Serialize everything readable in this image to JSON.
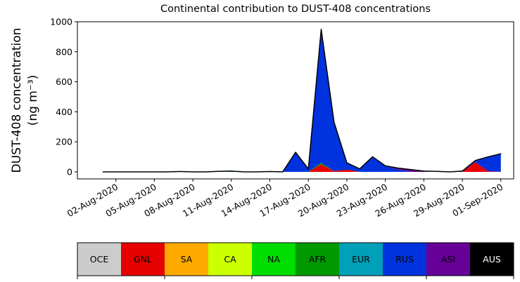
{
  "chart_data": {
    "type": "stacked_area",
    "title": "Continental contribution to DUST-408 concentrations",
    "ylabel": [
      "DUST-408 concentration",
      "(ng m⁻³)"
    ],
    "x": [
      "2020-08-01",
      "2020-08-02",
      "2020-08-03",
      "2020-08-04",
      "2020-08-05",
      "2020-08-06",
      "2020-08-07",
      "2020-08-08",
      "2020-08-09",
      "2020-08-10",
      "2020-08-11",
      "2020-08-12",
      "2020-08-13",
      "2020-08-14",
      "2020-08-15",
      "2020-08-16",
      "2020-08-17",
      "2020-08-18",
      "2020-08-19",
      "2020-08-20",
      "2020-08-21",
      "2020-08-22",
      "2020-08-23",
      "2020-08-24",
      "2020-08-25",
      "2020-08-26",
      "2020-08-27",
      "2020-08-28",
      "2020-08-29",
      "2020-08-30",
      "2020-08-31",
      "2020-09-01"
    ],
    "xlim": [
      "2020-07-30",
      "2020-09-02"
    ],
    "xticks": [
      {
        "value": "2020-08-02",
        "label": "02-Aug-2020"
      },
      {
        "value": "2020-08-05",
        "label": "05-Aug-2020"
      },
      {
        "value": "2020-08-08",
        "label": "08-Aug-2020"
      },
      {
        "value": "2020-08-11",
        "label": "11-Aug-2020"
      },
      {
        "value": "2020-08-14",
        "label": "14-Aug-2020"
      },
      {
        "value": "2020-08-17",
        "label": "17-Aug-2020"
      },
      {
        "value": "2020-08-20",
        "label": "20-Aug-2020"
      },
      {
        "value": "2020-08-23",
        "label": "23-Aug-2020"
      },
      {
        "value": "2020-08-26",
        "label": "26-Aug-2020"
      },
      {
        "value": "2020-08-29",
        "label": "29-Aug-2020"
      },
      {
        "value": "2020-09-01",
        "label": "01-Sep-2020"
      }
    ],
    "ylim": [
      -47,
      1000
    ],
    "yticks": [
      0,
      200,
      400,
      600,
      800,
      1000
    ],
    "series": [
      {
        "name": "OCE",
        "color": "#cccccc",
        "values": [
          0,
          0,
          0,
          0,
          0,
          0,
          0,
          0,
          0,
          0,
          0,
          0,
          0,
          0,
          0,
          0,
          0,
          0,
          0,
          0,
          0,
          0,
          0,
          0,
          0,
          0,
          0,
          0,
          0,
          0,
          0,
          0
        ]
      },
      {
        "name": "GNL",
        "color": "#e60000",
        "values": [
          0,
          0,
          0,
          0,
          0,
          0,
          0,
          0,
          0,
          0,
          0,
          0,
          0,
          0,
          0,
          0,
          0,
          50,
          5,
          15,
          0,
          0,
          0,
          0,
          0,
          0,
          0,
          0,
          0,
          65,
          5,
          0
        ]
      },
      {
        "name": "SA",
        "color": "#ffaa00",
        "values": [
          0,
          0,
          0,
          0,
          0,
          0,
          0,
          0,
          0,
          0,
          0,
          0,
          0,
          0,
          0,
          0,
          0,
          0,
          0,
          0,
          0,
          0,
          0,
          0,
          0,
          0,
          0,
          0,
          0,
          0,
          0,
          0
        ]
      },
      {
        "name": "CA",
        "color": "#ccff00",
        "values": [
          0,
          0,
          0,
          0,
          0,
          0,
          0,
          0,
          0,
          2,
          0,
          0,
          0,
          2,
          0,
          0,
          0,
          0,
          0,
          0,
          0,
          0,
          0,
          0,
          0,
          0,
          3,
          0,
          0,
          0,
          0,
          0
        ]
      },
      {
        "name": "NA",
        "color": "#00dd00",
        "values": [
          0,
          0,
          0,
          0,
          0,
          0,
          1,
          0,
          0,
          0,
          2,
          0,
          0,
          0,
          0,
          0,
          0,
          0,
          0,
          0,
          0,
          0,
          0,
          0,
          0,
          0,
          0,
          0,
          0,
          0,
          0,
          0
        ]
      },
      {
        "name": "AFR",
        "color": "#009900",
        "values": [
          0,
          0,
          0,
          0,
          0,
          0,
          0,
          0,
          0,
          0,
          0,
          0,
          0,
          0,
          0,
          0,
          0,
          10,
          0,
          0,
          0,
          0,
          0,
          0,
          0,
          0,
          0,
          0,
          0,
          0,
          0,
          0
        ]
      },
      {
        "name": "EUR",
        "color": "#00a0b8",
        "values": [
          0,
          0,
          0,
          0,
          0,
          0,
          0,
          0,
          0,
          0,
          0,
          0,
          0,
          0,
          0,
          0,
          0,
          0,
          0,
          0,
          0,
          0,
          0,
          0,
          0,
          0,
          0,
          0,
          0,
          0,
          0,
          0
        ]
      },
      {
        "name": "RUS",
        "color": "#0033dd",
        "values": [
          0,
          0,
          0,
          0,
          0,
          0,
          1,
          0,
          0,
          1,
          3,
          0,
          0,
          0,
          0,
          130,
          20,
          890,
          326,
          45,
          20,
          100,
          40,
          15,
          0,
          0,
          0,
          0,
          5,
          10,
          95,
          120
        ]
      },
      {
        "name": "ASI",
        "color": "#660099",
        "values": [
          0,
          0,
          0,
          0,
          0,
          0,
          0,
          0,
          0,
          0,
          0,
          0,
          0,
          0,
          0,
          0,
          0,
          0,
          0,
          0,
          0,
          0,
          0,
          10,
          15,
          5,
          0,
          0,
          0,
          0,
          0,
          0
        ]
      },
      {
        "name": "AUS",
        "color": "#000000",
        "values": [
          0,
          0,
          0,
          0,
          0,
          0,
          0,
          0,
          0,
          0,
          0,
          0,
          0,
          0,
          0,
          0,
          0,
          0,
          0,
          0,
          0,
          0,
          0,
          0,
          0,
          0,
          0,
          0,
          0,
          0,
          0,
          0
        ]
      }
    ]
  }
}
